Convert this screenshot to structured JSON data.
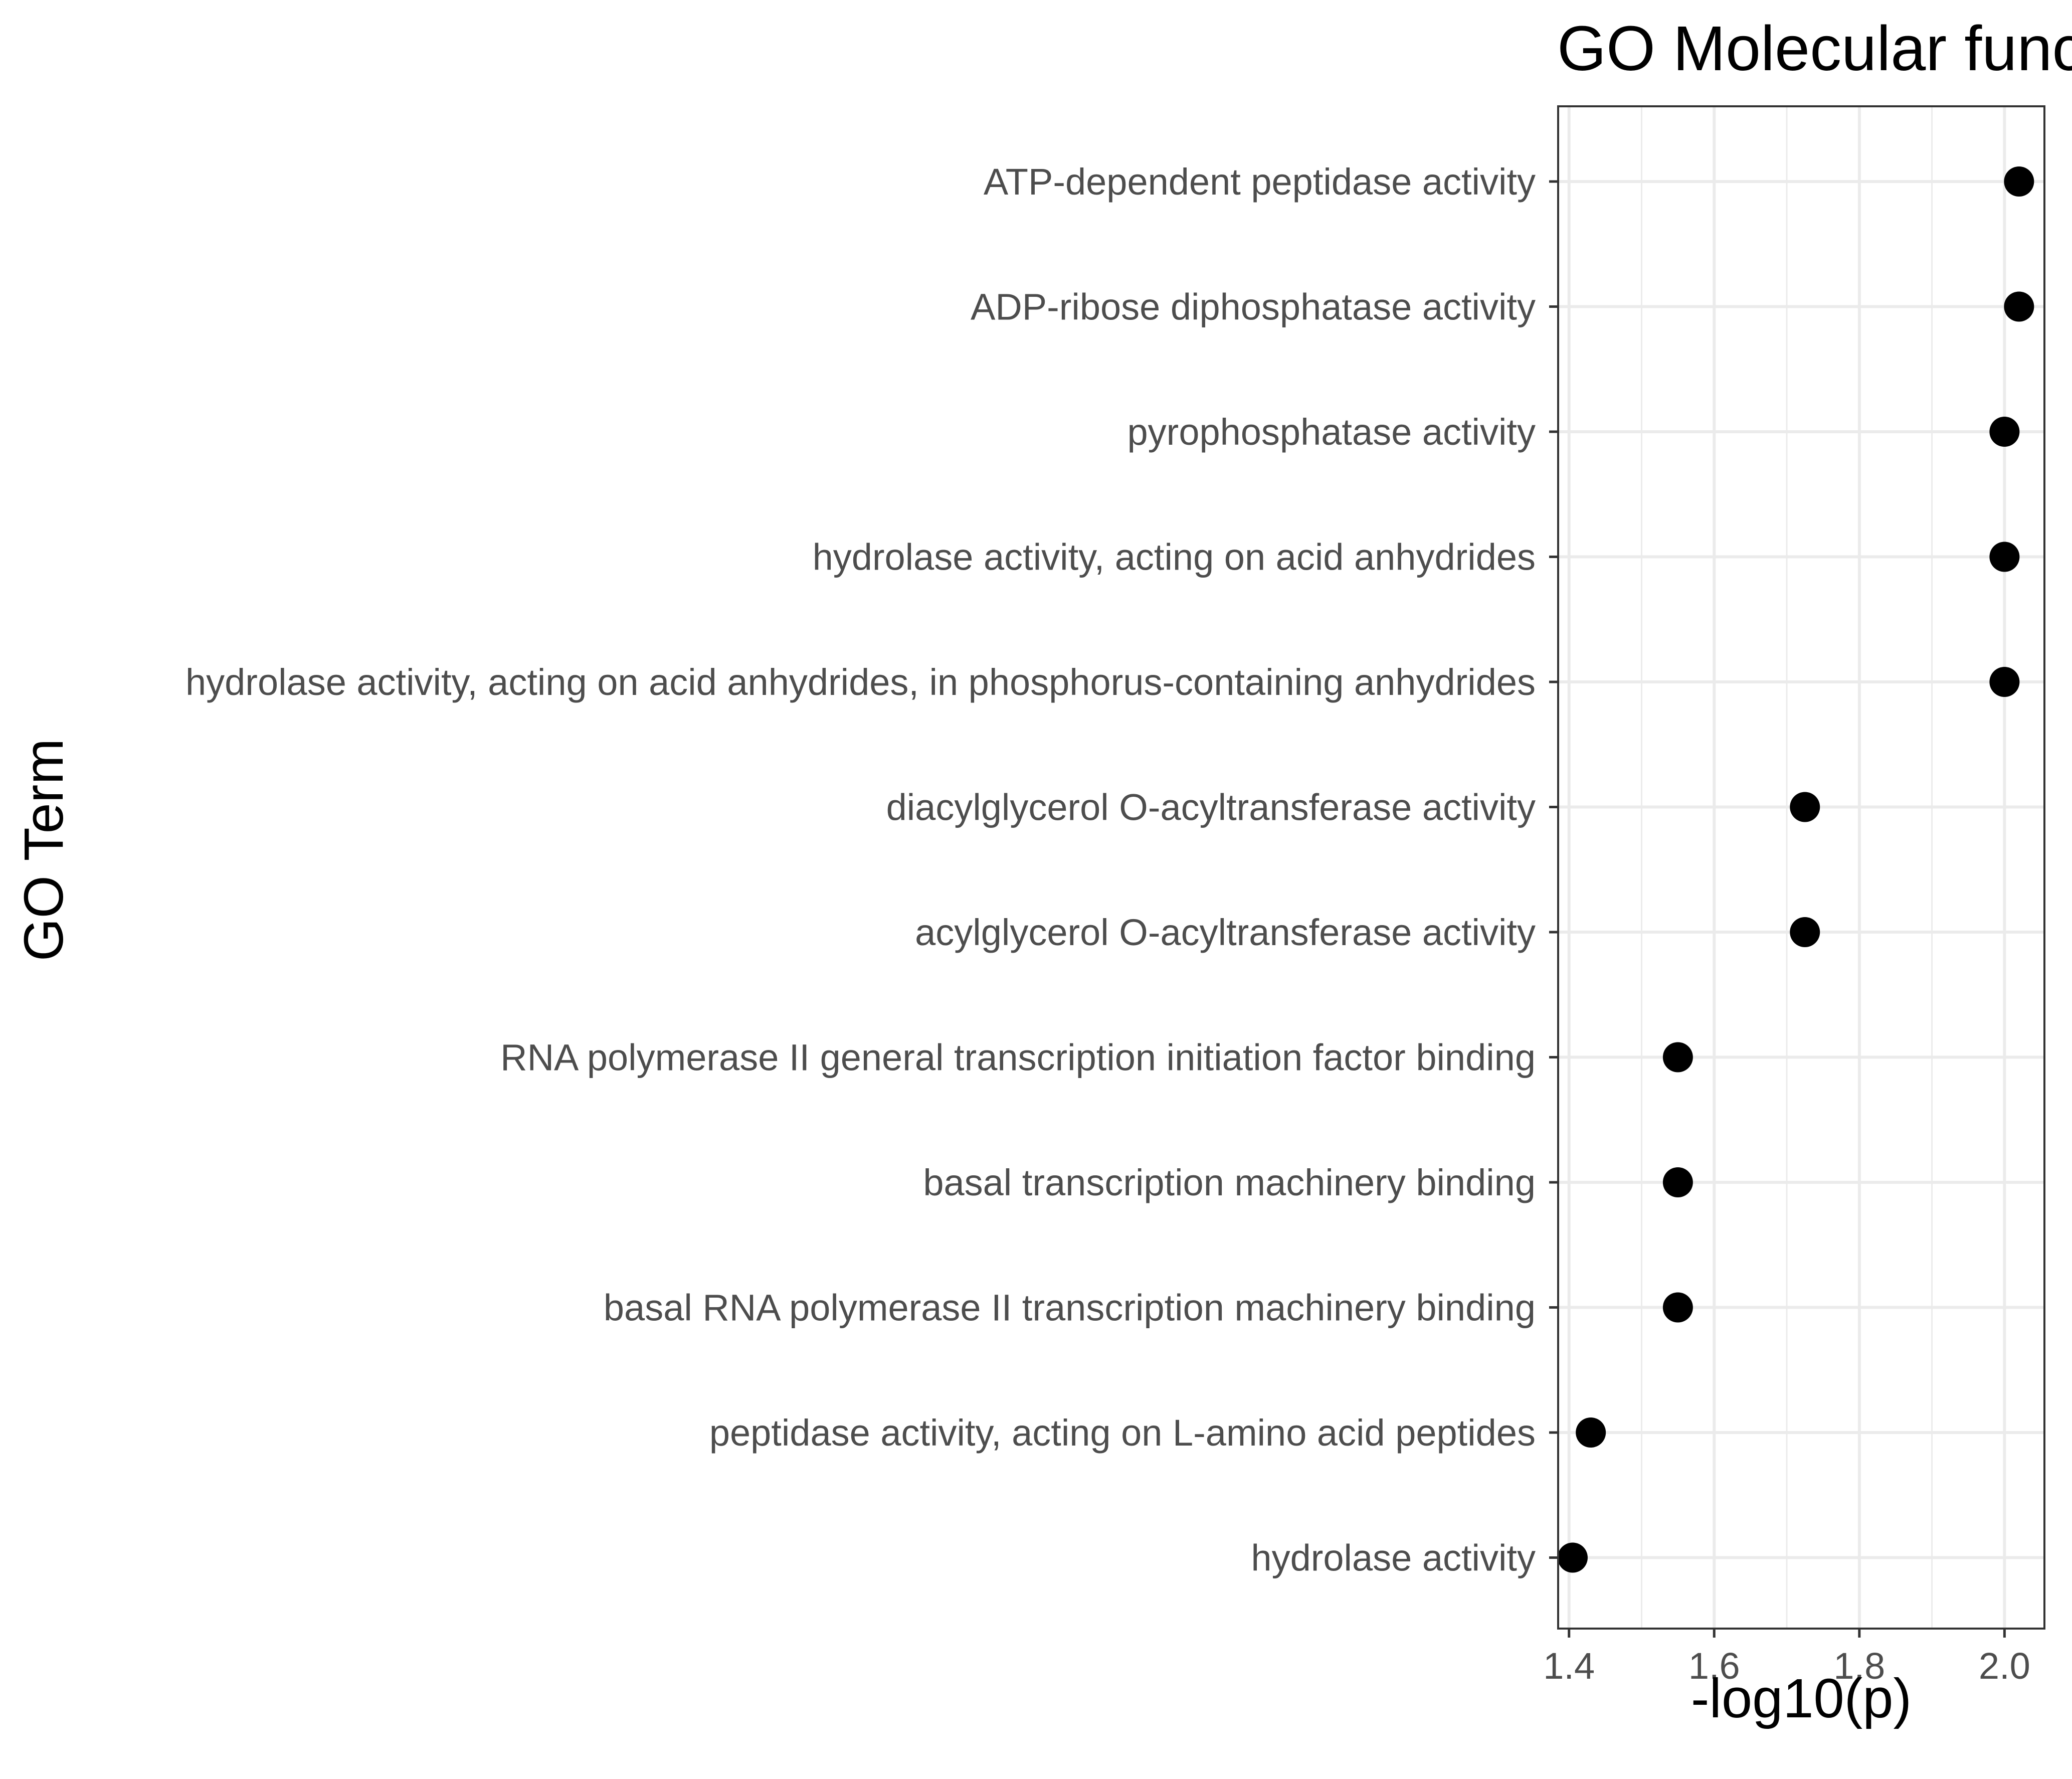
{
  "chart_data": {
    "type": "scatter",
    "title": "GO Molecular funct",
    "xlabel": "-log10(p)",
    "ylabel": "GO Term",
    "xlim": [
      1.385,
      2.055
    ],
    "x_ticks": [
      "1.4",
      "1.6",
      "1.8",
      "2.0"
    ],
    "x_tick_values": [
      1.4,
      1.6,
      1.8,
      2.0
    ],
    "x_minor_grid": [
      1.5,
      1.7,
      1.9
    ],
    "grid": true,
    "legend": "none",
    "point_color": "#000000",
    "categories": [
      "ATP-dependent peptidase activity",
      "ADP-ribose diphosphatase activity",
      "pyrophosphatase activity",
      "hydrolase activity, acting on acid anhydrides",
      "hydrolase activity, acting on acid anhydrides, in phosphorus-containing anhydrides",
      "diacylglycerol O-acyltransferase activity",
      "acylglycerol O-acyltransferase activity",
      "RNA polymerase II general transcription initiation factor binding",
      "basal transcription machinery binding",
      "basal RNA polymerase II transcription machinery binding",
      "peptidase activity, acting on L-amino acid peptides",
      "hydrolase activity"
    ],
    "values": [
      2.02,
      2.02,
      2.0,
      2.0,
      2.0,
      1.725,
      1.725,
      1.55,
      1.55,
      1.55,
      1.43,
      1.405
    ]
  }
}
